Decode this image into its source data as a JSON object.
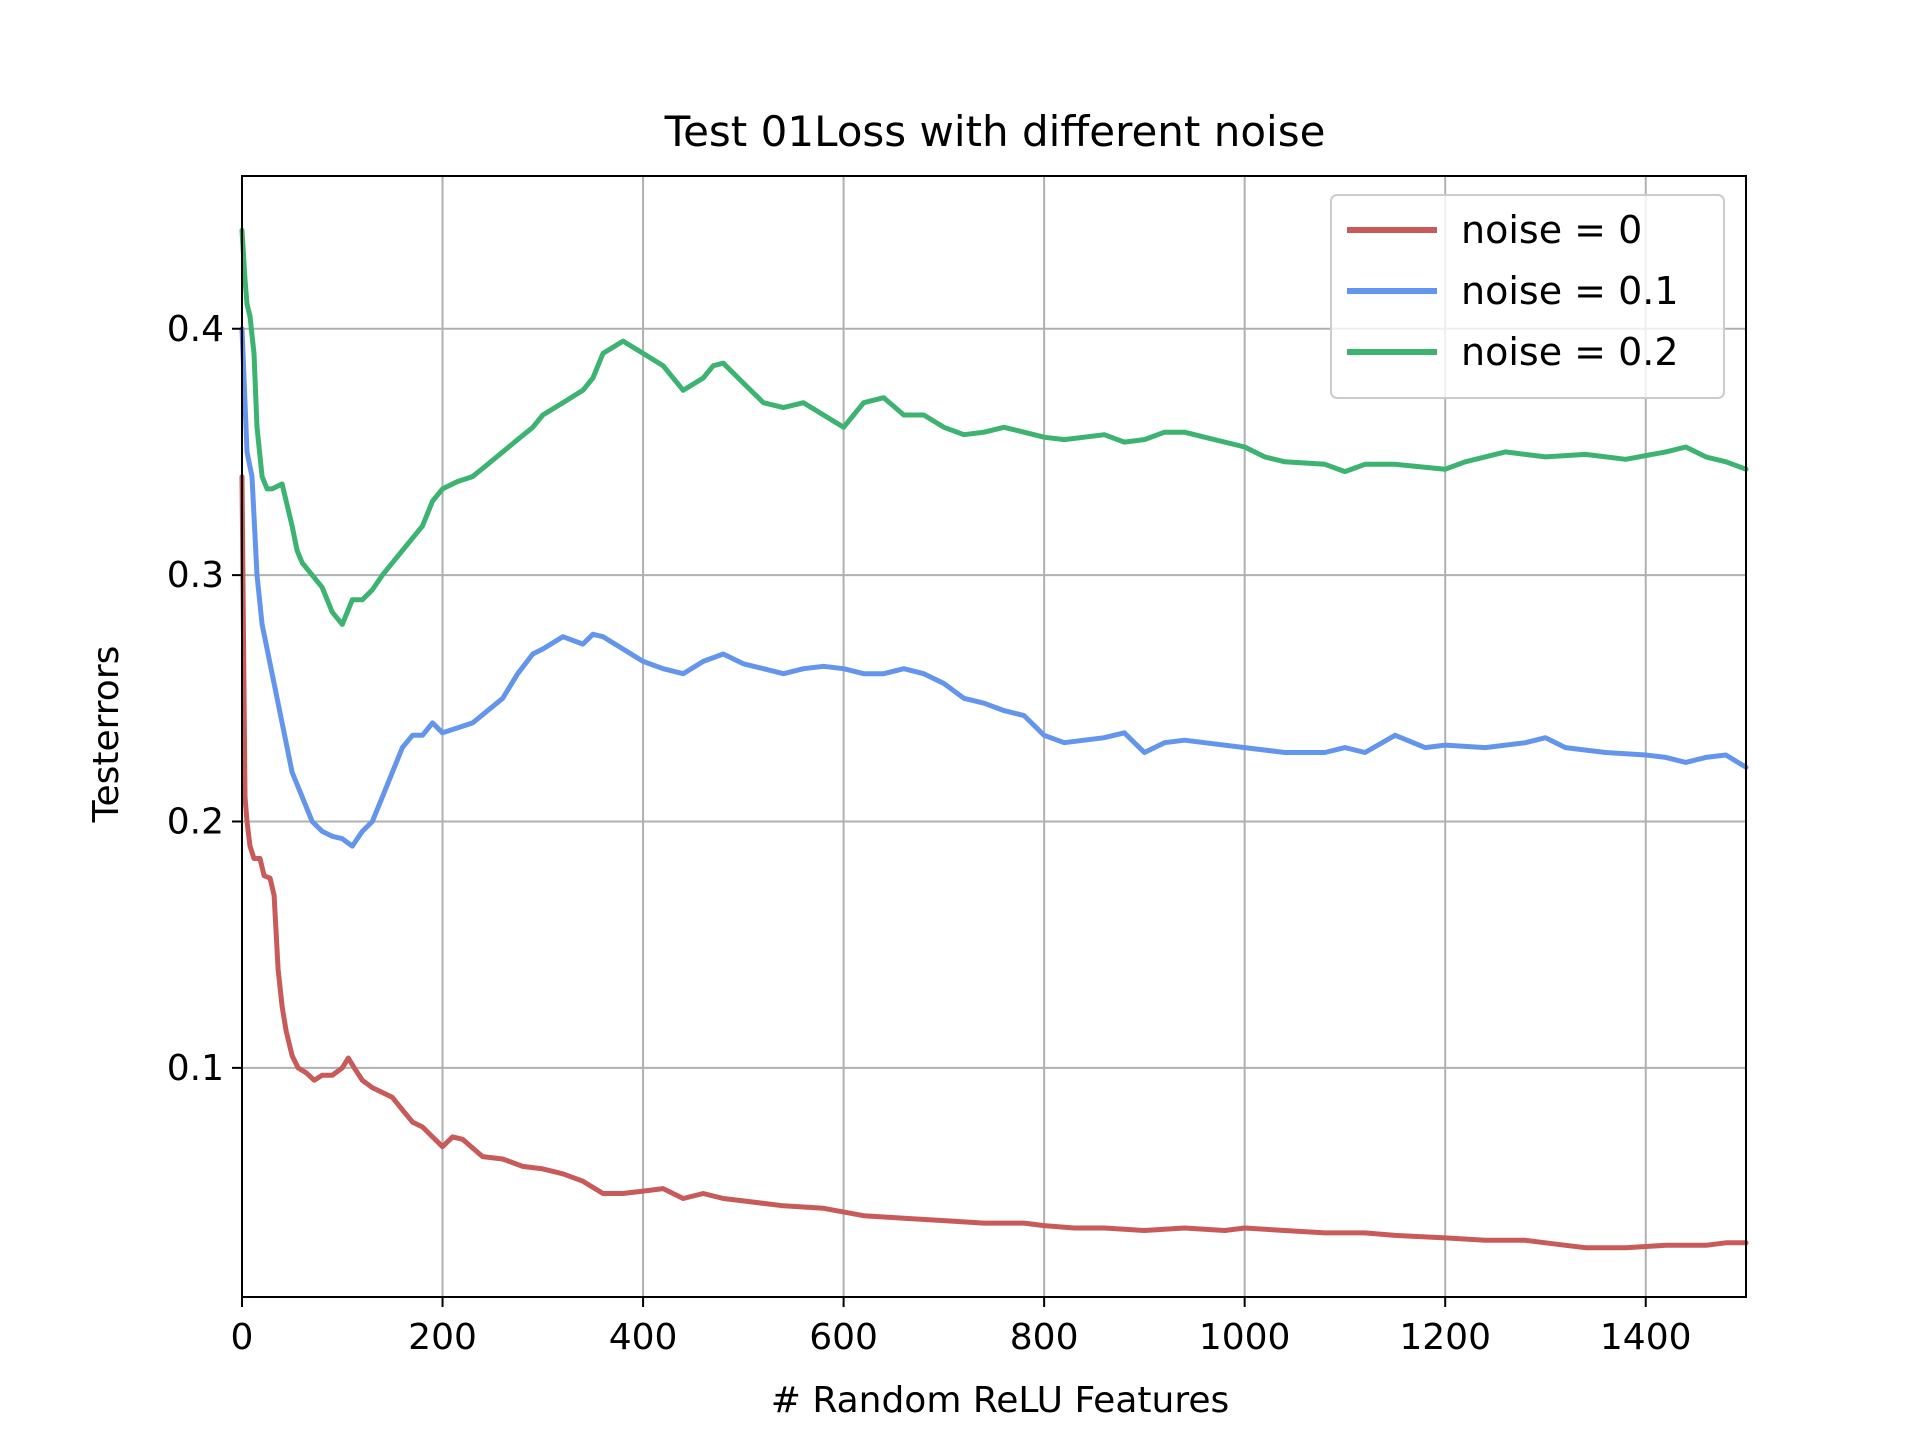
{
  "chart_data": {
    "type": "line",
    "title": "Test 01Loss with different noise",
    "xlabel": "# Random ReLU Features",
    "ylabel": "Testerrors",
    "xlim": [
      0,
      1500
    ],
    "ylim": [
      0.007,
      0.462
    ],
    "xticks": [
      0,
      200,
      400,
      600,
      800,
      1000,
      1200,
      1400
    ],
    "yticks": [
      0.1,
      0.2,
      0.3,
      0.4
    ],
    "grid": true,
    "legend_position": "top-right",
    "series": [
      {
        "name": "noise = 0",
        "color": "#c85a5a",
        "x": [
          0,
          3,
          5,
          8,
          12,
          18,
          22,
          28,
          32,
          36,
          40,
          44,
          50,
          56,
          64,
          72,
          80,
          90,
          100,
          106,
          112,
          120,
          130,
          140,
          150,
          160,
          170,
          180,
          190,
          200,
          210,
          220,
          240,
          260,
          280,
          300,
          320,
          340,
          360,
          380,
          400,
          420,
          440,
          460,
          480,
          500,
          540,
          580,
          620,
          660,
          700,
          740,
          780,
          800,
          830,
          860,
          900,
          940,
          980,
          1000,
          1040,
          1080,
          1120,
          1150,
          1200,
          1240,
          1280,
          1320,
          1340,
          1380,
          1420,
          1460,
          1480,
          1500
        ],
        "y": [
          0.34,
          0.21,
          0.2,
          0.19,
          0.185,
          0.185,
          0.178,
          0.177,
          0.17,
          0.14,
          0.125,
          0.115,
          0.105,
          0.1,
          0.098,
          0.095,
          0.097,
          0.097,
          0.1,
          0.104,
          0.1,
          0.095,
          0.092,
          0.09,
          0.088,
          0.083,
          0.078,
          0.076,
          0.072,
          0.068,
          0.072,
          0.071,
          0.064,
          0.063,
          0.06,
          0.059,
          0.057,
          0.054,
          0.049,
          0.049,
          0.05,
          0.051,
          0.047,
          0.049,
          0.047,
          0.046,
          0.044,
          0.043,
          0.04,
          0.039,
          0.038,
          0.037,
          0.037,
          0.036,
          0.035,
          0.035,
          0.034,
          0.035,
          0.034,
          0.035,
          0.034,
          0.033,
          0.033,
          0.032,
          0.031,
          0.03,
          0.03,
          0.028,
          0.027,
          0.027,
          0.028,
          0.028,
          0.029,
          0.029
        ]
      },
      {
        "name": "noise = 0.1",
        "color": "#6495ed",
        "x": [
          0,
          5,
          10,
          15,
          20,
          25,
          30,
          40,
          50,
          60,
          70,
          80,
          90,
          100,
          110,
          120,
          130,
          140,
          150,
          160,
          170,
          180,
          190,
          200,
          215,
          230,
          245,
          260,
          275,
          290,
          300,
          320,
          340,
          350,
          360,
          380,
          400,
          420,
          440,
          460,
          480,
          500,
          520,
          540,
          560,
          580,
          600,
          620,
          640,
          660,
          680,
          700,
          720,
          740,
          760,
          780,
          800,
          820,
          840,
          860,
          880,
          900,
          920,
          940,
          960,
          1000,
          1040,
          1080,
          1100,
          1120,
          1150,
          1180,
          1200,
          1240,
          1280,
          1300,
          1320,
          1360,
          1400,
          1420,
          1440,
          1460,
          1480,
          1500
        ],
        "y": [
          0.4,
          0.35,
          0.34,
          0.3,
          0.28,
          0.27,
          0.26,
          0.24,
          0.22,
          0.21,
          0.2,
          0.196,
          0.194,
          0.193,
          0.19,
          0.196,
          0.2,
          0.21,
          0.22,
          0.23,
          0.235,
          0.235,
          0.24,
          0.236,
          0.238,
          0.24,
          0.245,
          0.25,
          0.26,
          0.268,
          0.27,
          0.275,
          0.272,
          0.276,
          0.275,
          0.27,
          0.265,
          0.262,
          0.26,
          0.265,
          0.268,
          0.264,
          0.262,
          0.26,
          0.262,
          0.263,
          0.262,
          0.26,
          0.26,
          0.262,
          0.26,
          0.256,
          0.25,
          0.248,
          0.245,
          0.243,
          0.235,
          0.232,
          0.233,
          0.234,
          0.236,
          0.228,
          0.232,
          0.233,
          0.232,
          0.23,
          0.228,
          0.228,
          0.23,
          0.228,
          0.235,
          0.23,
          0.231,
          0.23,
          0.232,
          0.234,
          0.23,
          0.228,
          0.227,
          0.226,
          0.224,
          0.226,
          0.227,
          0.222
        ]
      },
      {
        "name": "noise = 0.2",
        "color": "#3cb371",
        "x": [
          0,
          3,
          5,
          8,
          12,
          15,
          20,
          25,
          30,
          40,
          50,
          55,
          60,
          70,
          80,
          90,
          100,
          110,
          120,
          130,
          140,
          150,
          160,
          170,
          180,
          190,
          200,
          215,
          230,
          245,
          260,
          275,
          290,
          300,
          320,
          340,
          350,
          360,
          380,
          400,
          420,
          440,
          460,
          470,
          480,
          500,
          520,
          540,
          560,
          580,
          600,
          620,
          640,
          660,
          680,
          700,
          720,
          740,
          760,
          780,
          800,
          820,
          840,
          860,
          880,
          900,
          920,
          940,
          960,
          1000,
          1020,
          1040,
          1080,
          1100,
          1120,
          1150,
          1200,
          1220,
          1260,
          1300,
          1340,
          1380,
          1420,
          1440,
          1460,
          1480,
          1500
        ],
        "y": [
          0.44,
          0.42,
          0.41,
          0.405,
          0.39,
          0.36,
          0.34,
          0.335,
          0.335,
          0.337,
          0.32,
          0.31,
          0.305,
          0.3,
          0.295,
          0.285,
          0.28,
          0.29,
          0.29,
          0.294,
          0.3,
          0.305,
          0.31,
          0.315,
          0.32,
          0.33,
          0.335,
          0.338,
          0.34,
          0.345,
          0.35,
          0.355,
          0.36,
          0.365,
          0.37,
          0.375,
          0.38,
          0.39,
          0.395,
          0.39,
          0.385,
          0.375,
          0.38,
          0.385,
          0.386,
          0.378,
          0.37,
          0.368,
          0.37,
          0.365,
          0.36,
          0.37,
          0.372,
          0.365,
          0.365,
          0.36,
          0.357,
          0.358,
          0.36,
          0.358,
          0.356,
          0.355,
          0.356,
          0.357,
          0.354,
          0.355,
          0.358,
          0.358,
          0.356,
          0.352,
          0.348,
          0.346,
          0.345,
          0.342,
          0.345,
          0.345,
          0.343,
          0.346,
          0.35,
          0.348,
          0.349,
          0.347,
          0.35,
          0.352,
          0.348,
          0.346,
          0.343
        ]
      }
    ]
  }
}
